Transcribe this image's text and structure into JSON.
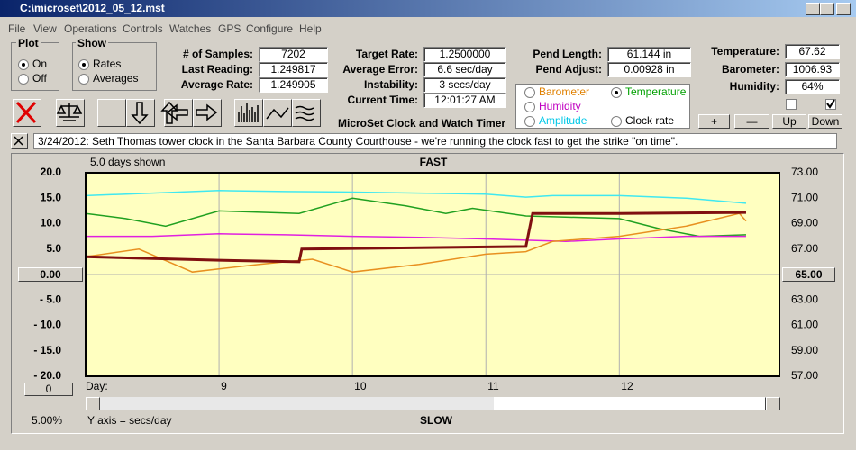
{
  "window": {
    "title": "C:\\microset\\2012_05_12.mst"
  },
  "menu": [
    "File",
    "View",
    "Operations",
    "Controls",
    "Watches",
    "GPS",
    "Configure",
    "Help"
  ],
  "plot_group": {
    "title": "Plot",
    "options": [
      "On",
      "Off"
    ]
  },
  "show_group": {
    "title": "Show",
    "options": [
      "Rates",
      "Averages"
    ]
  },
  "fields": [
    {
      "label": "# of Samples:",
      "value": "7202"
    },
    {
      "label": "Last Reading:",
      "value": "1.249817"
    },
    {
      "label": "Average Rate:",
      "value": "1.249905"
    },
    {
      "label": "Target Rate:",
      "value": "1.2500000"
    },
    {
      "label": "Average Error:",
      "value": "6.6 sec/day"
    },
    {
      "label": "Instability:",
      "value": "3 secs/day"
    },
    {
      "label": "Current Time:",
      "value": "12:01:27 AM"
    },
    {
      "label": "Pend Length:",
      "value": "61.144 in"
    },
    {
      "label": "Pend Adjust:",
      "value": "0.00928 in"
    },
    {
      "label": "Temperature:",
      "value": "67.62"
    },
    {
      "label": "Barometer:",
      "value": "1006.93"
    },
    {
      "label": "Humidity:",
      "value": "64%"
    }
  ],
  "app_name": "MicroSet Clock and Watch Timer",
  "channels": [
    {
      "name": "Barometer",
      "color": "#e08000"
    },
    {
      "name": "Temperature",
      "color": "#00a000"
    },
    {
      "name": "Humidity",
      "color": "#c000c0"
    },
    {
      "name": "Amplitude",
      "color": "#00c8e8"
    },
    {
      "name": "Clock rate",
      "color": "#000000"
    }
  ],
  "buttons": [
    "+",
    "—",
    "Up",
    "Down"
  ],
  "note": "3/24/2012: Seth Thomas tower clock in the Santa Barbara County Courthouse - we're running the clock fast to get the strike \"on time\".",
  "chart": {
    "days_shown": "5.0 days shown",
    "top_label": "FAST",
    "bottom_label": "SLOW",
    "y_axis_note": "Y axis = secs/day",
    "zoom": "5.00%",
    "offset_button": "0",
    "x_label": "Day:",
    "xlim": [
      8,
      13.2
    ],
    "xticks": [
      9,
      10,
      11,
      12
    ],
    "ylim": [
      -20,
      20
    ],
    "yticks": [
      {
        "value": 20,
        "label": "20.0"
      },
      {
        "value": 15,
        "label": "15.0"
      },
      {
        "value": 10,
        "label": "10.0"
      },
      {
        "value": 5,
        "label": "5.0"
      },
      {
        "value": 0,
        "label": "0.00"
      },
      {
        "value": -5,
        "label": "- 5.0"
      },
      {
        "value": -10,
        "label": "- 10.0"
      },
      {
        "value": -15,
        "label": "- 15.0"
      },
      {
        "value": -20,
        "label": "- 20.0"
      }
    ],
    "y2lim": [
      57,
      73
    ],
    "y2ticks": [
      {
        "value": 73,
        "label": "73.00"
      },
      {
        "value": 71,
        "label": "71.00"
      },
      {
        "value": 69,
        "label": "69.00"
      },
      {
        "value": 67,
        "label": "67.00"
      },
      {
        "value": 65,
        "label": "65.00"
      },
      {
        "value": 63,
        "label": "63.00"
      },
      {
        "value": 61,
        "label": "61.00"
      },
      {
        "value": 59,
        "label": "59.00"
      },
      {
        "value": 57,
        "label": "57.00"
      }
    ],
    "series": [
      {
        "color": "#40e8f0",
        "x": [
          8,
          8.5,
          9,
          9.5,
          10,
          10.5,
          11,
          11.3,
          11.5,
          12,
          12.5,
          12.95
        ],
        "values": [
          15.5,
          16,
          16.5,
          16.3,
          16.2,
          16,
          15.8,
          15.2,
          15.5,
          15.5,
          15,
          14
        ]
      },
      {
        "color": "#20a020",
        "x": [
          8,
          8.3,
          8.6,
          9,
          9.6,
          10,
          10.4,
          10.7,
          10.9,
          11.3,
          12,
          12.3,
          12.6,
          12.95
        ],
        "values": [
          12,
          11,
          9.5,
          12.5,
          12,
          15,
          13.5,
          12,
          13,
          11.5,
          11,
          9,
          7.5,
          7.8
        ]
      },
      {
        "color": "#e020e0",
        "x": [
          8,
          8.5,
          9,
          9.5,
          10,
          10.5,
          11,
          11.6,
          12,
          12.5,
          12.95
        ],
        "values": [
          7.5,
          7.5,
          8,
          7.8,
          7.5,
          7.3,
          7,
          6.5,
          7,
          7.5,
          7.5
        ]
      },
      {
        "color": "#e89020",
        "x": [
          8,
          8.4,
          8.8,
          9.3,
          9.7,
          10,
          10.5,
          11,
          11.3,
          11.5,
          12,
          12.5,
          12.9,
          12.95
        ],
        "values": [
          3.5,
          5,
          0.5,
          2,
          3,
          0.5,
          2,
          4,
          4.5,
          6.5,
          7.5,
          9.5,
          12,
          10.5
        ]
      },
      {
        "color": "#801010",
        "x": [
          8,
          9,
          9.6,
          9.62,
          11.3,
          11.35,
          12,
          12.95
        ],
        "values": [
          3.5,
          2.8,
          2.5,
          5,
          5.5,
          12,
          12,
          12.2
        ]
      }
    ]
  }
}
